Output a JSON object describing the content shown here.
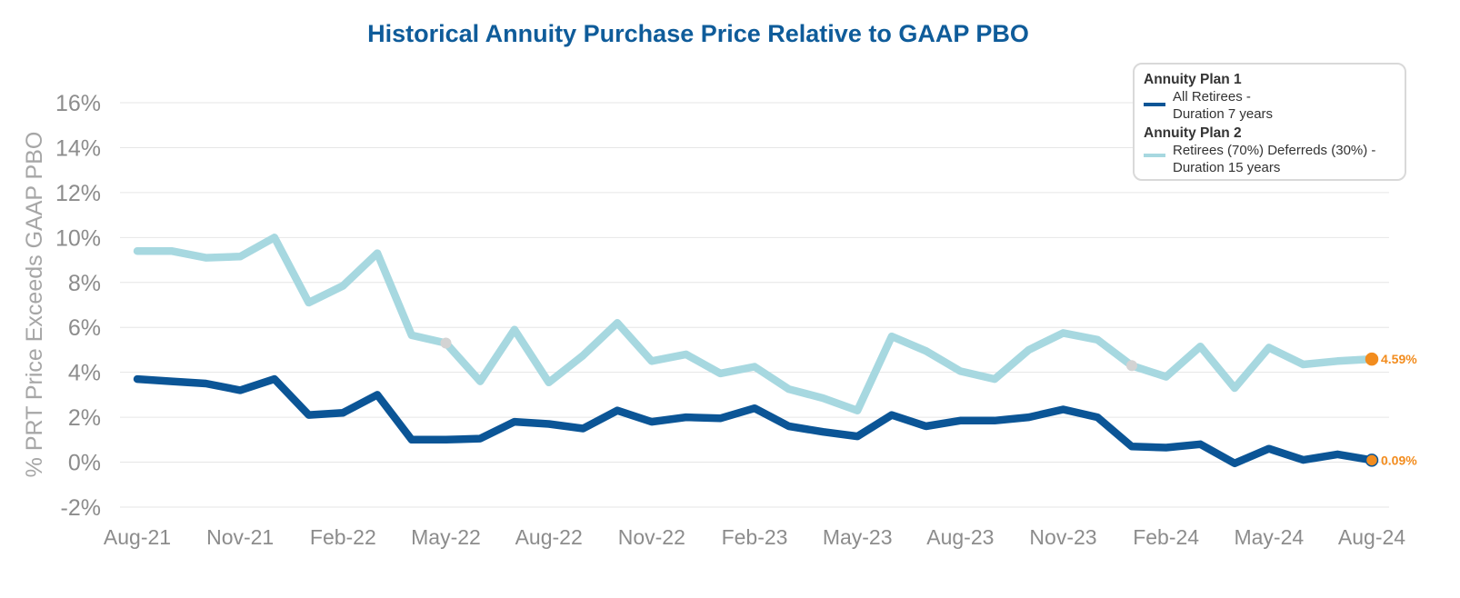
{
  "chart_data": {
    "type": "line",
    "title": "Historical Annuity Purchase Price Relative to GAAP PBO",
    "ylabel": "% PRT Price Exceeds GAAP PBO",
    "ylim": [
      -2,
      16
    ],
    "yticks": [
      -2,
      0,
      2,
      4,
      6,
      8,
      10,
      12,
      14,
      16
    ],
    "ytick_labels": [
      "-2%",
      "0%",
      "2%",
      "4%",
      "6%",
      "8%",
      "10%",
      "12%",
      "14%",
      "16%"
    ],
    "grid": true,
    "x": [
      "Aug-21",
      "Sep-21",
      "Oct-21",
      "Nov-21",
      "Dec-21",
      "Jan-22",
      "Feb-22",
      "Mar-22",
      "Apr-22",
      "May-22",
      "Jun-22",
      "Jul-22",
      "Aug-22",
      "Sep-22",
      "Oct-22",
      "Nov-22",
      "Dec-22",
      "Jan-23",
      "Feb-23",
      "Mar-23",
      "Apr-23",
      "May-23",
      "Jun-23",
      "Jul-23",
      "Aug-23",
      "Sep-23",
      "Oct-23",
      "Nov-23",
      "Dec-23",
      "Jan-24",
      "Feb-24",
      "Mar-24",
      "Apr-24",
      "May-24",
      "Jun-24",
      "Jul-24",
      "Aug-24"
    ],
    "xtick_labels": [
      "Aug-21",
      "Nov-21",
      "Feb-22",
      "May-22",
      "Aug-22",
      "Nov-22",
      "Feb-23",
      "May-23",
      "Aug-23",
      "Nov-23",
      "Feb-24",
      "May-24",
      "Aug-24"
    ],
    "series": [
      {
        "name": "All Retirees - Duration 7 years",
        "group": "Annuity Plan 1",
        "name_lines": [
          "All Retirees -",
          "Duration 7 years"
        ],
        "color": "#0b5596",
        "values": [
          3.7,
          3.6,
          3.5,
          3.2,
          3.7,
          2.1,
          2.2,
          3.0,
          1.0,
          1.0,
          1.05,
          1.8,
          1.7,
          1.5,
          2.3,
          1.8,
          2.0,
          1.95,
          2.4,
          1.6,
          1.35,
          1.15,
          2.1,
          1.6,
          1.85,
          1.85,
          2.0,
          2.35,
          2.0,
          0.7,
          0.65,
          0.8,
          -0.05,
          0.6,
          0.1,
          0.35,
          0.09
        ],
        "end_label": "0.09%"
      },
      {
        "name": "Retirees (70%) Deferreds (30%) - Duration 15 years",
        "group": "Annuity Plan 2",
        "name_lines": [
          "Retirees (70%) Deferreds (30%) -",
          "Duration 15 years"
        ],
        "color": "#a7d8e0",
        "values": [
          9.4,
          9.4,
          9.1,
          9.15,
          10.0,
          7.1,
          7.85,
          9.3,
          5.65,
          5.3,
          3.6,
          5.9,
          3.55,
          4.75,
          6.2,
          4.5,
          4.8,
          3.95,
          4.25,
          3.25,
          2.85,
          2.3,
          5.6,
          4.95,
          4.05,
          3.7,
          5.0,
          5.75,
          5.45,
          4.3,
          3.8,
          5.15,
          3.3,
          5.1,
          4.35,
          4.5,
          4.59
        ],
        "end_label": "4.59%"
      }
    ],
    "highlight_points": [
      "May-22",
      "Jan-24"
    ],
    "highlight_color": "#d3d3d3",
    "end_marker_color": "#f28c1e",
    "legend_position": "top-right"
  }
}
